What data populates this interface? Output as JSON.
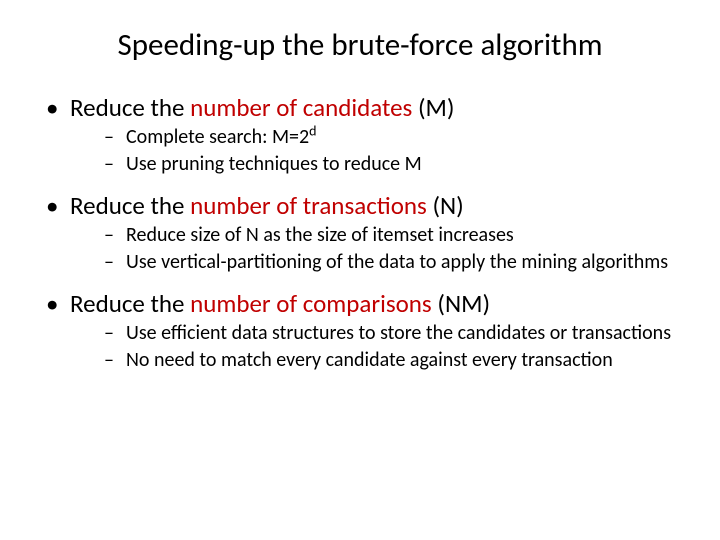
{
  "colors": {
    "background": "#ffffff",
    "text": "#000000",
    "accent": "#c00000"
  },
  "typography": {
    "title_fontsize": 31,
    "level1_fontsize": 25,
    "level2_fontsize": 20,
    "font_family": "Calibri"
  },
  "title": "Speeding-up the brute-force algorithm",
  "bullets": [
    {
      "prefix": "Reduce the ",
      "highlight": "number of candidates",
      "suffix": " (M)",
      "sub": [
        {
          "text_html": "Complete search: M=2<sup>d</sup>"
        },
        {
          "text": "Use pruning techniques to reduce M"
        }
      ]
    },
    {
      "prefix": "Reduce the ",
      "highlight": "number of transactions",
      "suffix": " (N)",
      "sub": [
        {
          "text": "Reduce size of N as the size of itemset increases"
        },
        {
          "text": "Use vertical-partitioning of the data to apply the mining algorithms"
        }
      ]
    },
    {
      "prefix": "Reduce the ",
      "highlight": "number of comparisons",
      "suffix": " (NM)",
      "sub": [
        {
          "text": "Use efficient data structures to store the candidates or transactions"
        },
        {
          "text": "No need to match every candidate against every transaction"
        }
      ]
    }
  ]
}
